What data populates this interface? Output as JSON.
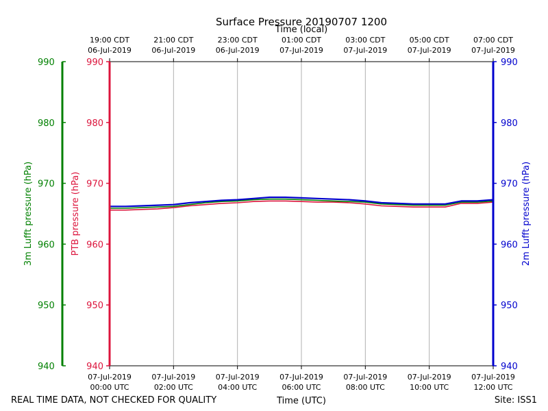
{
  "chart_data": {
    "type": "line",
    "title": "Surface Pressure 20190707 1200",
    "top_axis_label": "Time (local)",
    "xlabel": "Time (UTC)",
    "footer_left": "REAL TIME DATA, NOT CHECKED FOR QUALITY",
    "footer_right": "Site: ISS1",
    "x_range_hours": [
      0,
      12
    ],
    "ylim": [
      940,
      990
    ],
    "y_ticks": [
      940,
      950,
      960,
      970,
      980,
      990
    ],
    "y_tick_labels": [
      "940",
      "950",
      "960",
      "970",
      "980",
      "990"
    ],
    "axes": {
      "lufft3m": {
        "label": "3m Lufft pressure (hPa)",
        "color": "#008000"
      },
      "ptb": {
        "label": "PTB pressure (hPa)",
        "color": "#dc143c"
      },
      "lufft2m": {
        "label": "2m Lufft pressure (hPa)",
        "color": "#0000cd"
      }
    },
    "bottom_ticks": [
      {
        "hour": 0,
        "date": "07-Jul-2019",
        "time": "00:00 UTC"
      },
      {
        "hour": 2,
        "date": "07-Jul-2019",
        "time": "02:00 UTC"
      },
      {
        "hour": 4,
        "date": "07-Jul-2019",
        "time": "04:00 UTC"
      },
      {
        "hour": 6,
        "date": "07-Jul-2019",
        "time": "06:00 UTC"
      },
      {
        "hour": 8,
        "date": "07-Jul-2019",
        "time": "08:00 UTC"
      },
      {
        "hour": 10,
        "date": "07-Jul-2019",
        "time": "10:00 UTC"
      },
      {
        "hour": 12,
        "date": "07-Jul-2019",
        "time": "12:00 UTC"
      }
    ],
    "top_ticks": [
      {
        "hour": 0,
        "time": "19:00 CDT",
        "date": "06-Jul-2019"
      },
      {
        "hour": 2,
        "time": "21:00 CDT",
        "date": "06-Jul-2019"
      },
      {
        "hour": 4,
        "time": "23:00 CDT",
        "date": "06-Jul-2019"
      },
      {
        "hour": 6,
        "time": "01:00 CDT",
        "date": "07-Jul-2019"
      },
      {
        "hour": 8,
        "time": "03:00 CDT",
        "date": "07-Jul-2019"
      },
      {
        "hour": 10,
        "time": "05:00 CDT",
        "date": "07-Jul-2019"
      },
      {
        "hour": 12,
        "time": "07:00 CDT",
        "date": "07-Jul-2019"
      }
    ],
    "x": [
      0,
      0.5,
      1,
      1.5,
      2,
      2.5,
      3,
      3.5,
      4,
      4.5,
      5,
      5.5,
      6,
      6.5,
      7,
      7.5,
      8,
      8.5,
      9,
      9.5,
      10,
      10.5,
      11,
      11.5,
      12
    ],
    "series": [
      {
        "name": "2m Lufft pressure",
        "color": "#0000cd",
        "values": [
          966.2,
          966.2,
          966.3,
          966.4,
          966.5,
          966.8,
          967.0,
          967.2,
          967.3,
          967.5,
          967.7,
          967.7,
          967.6,
          967.5,
          967.4,
          967.3,
          967.1,
          966.8,
          966.7,
          966.6,
          966.6,
          966.6,
          967.1,
          967.1,
          967.3
        ]
      },
      {
        "name": "3m Lufft pressure",
        "color": "#008000",
        "values": [
          965.9,
          965.9,
          966.0,
          966.1,
          966.2,
          966.5,
          966.8,
          967.0,
          967.1,
          967.3,
          967.4,
          967.4,
          967.3,
          967.2,
          967.1,
          967.0,
          966.9,
          966.6,
          966.5,
          966.4,
          966.4,
          966.4,
          966.9,
          966.9,
          967.1
        ]
      },
      {
        "name": "PTB pressure",
        "color": "#dc143c",
        "values": [
          965.6,
          965.6,
          965.7,
          965.8,
          966.0,
          966.3,
          966.5,
          966.7,
          966.8,
          967.0,
          967.1,
          967.1,
          967.0,
          966.9,
          966.9,
          966.8,
          966.6,
          966.3,
          966.2,
          966.1,
          966.1,
          966.1,
          966.7,
          966.7,
          966.9
        ]
      }
    ]
  }
}
